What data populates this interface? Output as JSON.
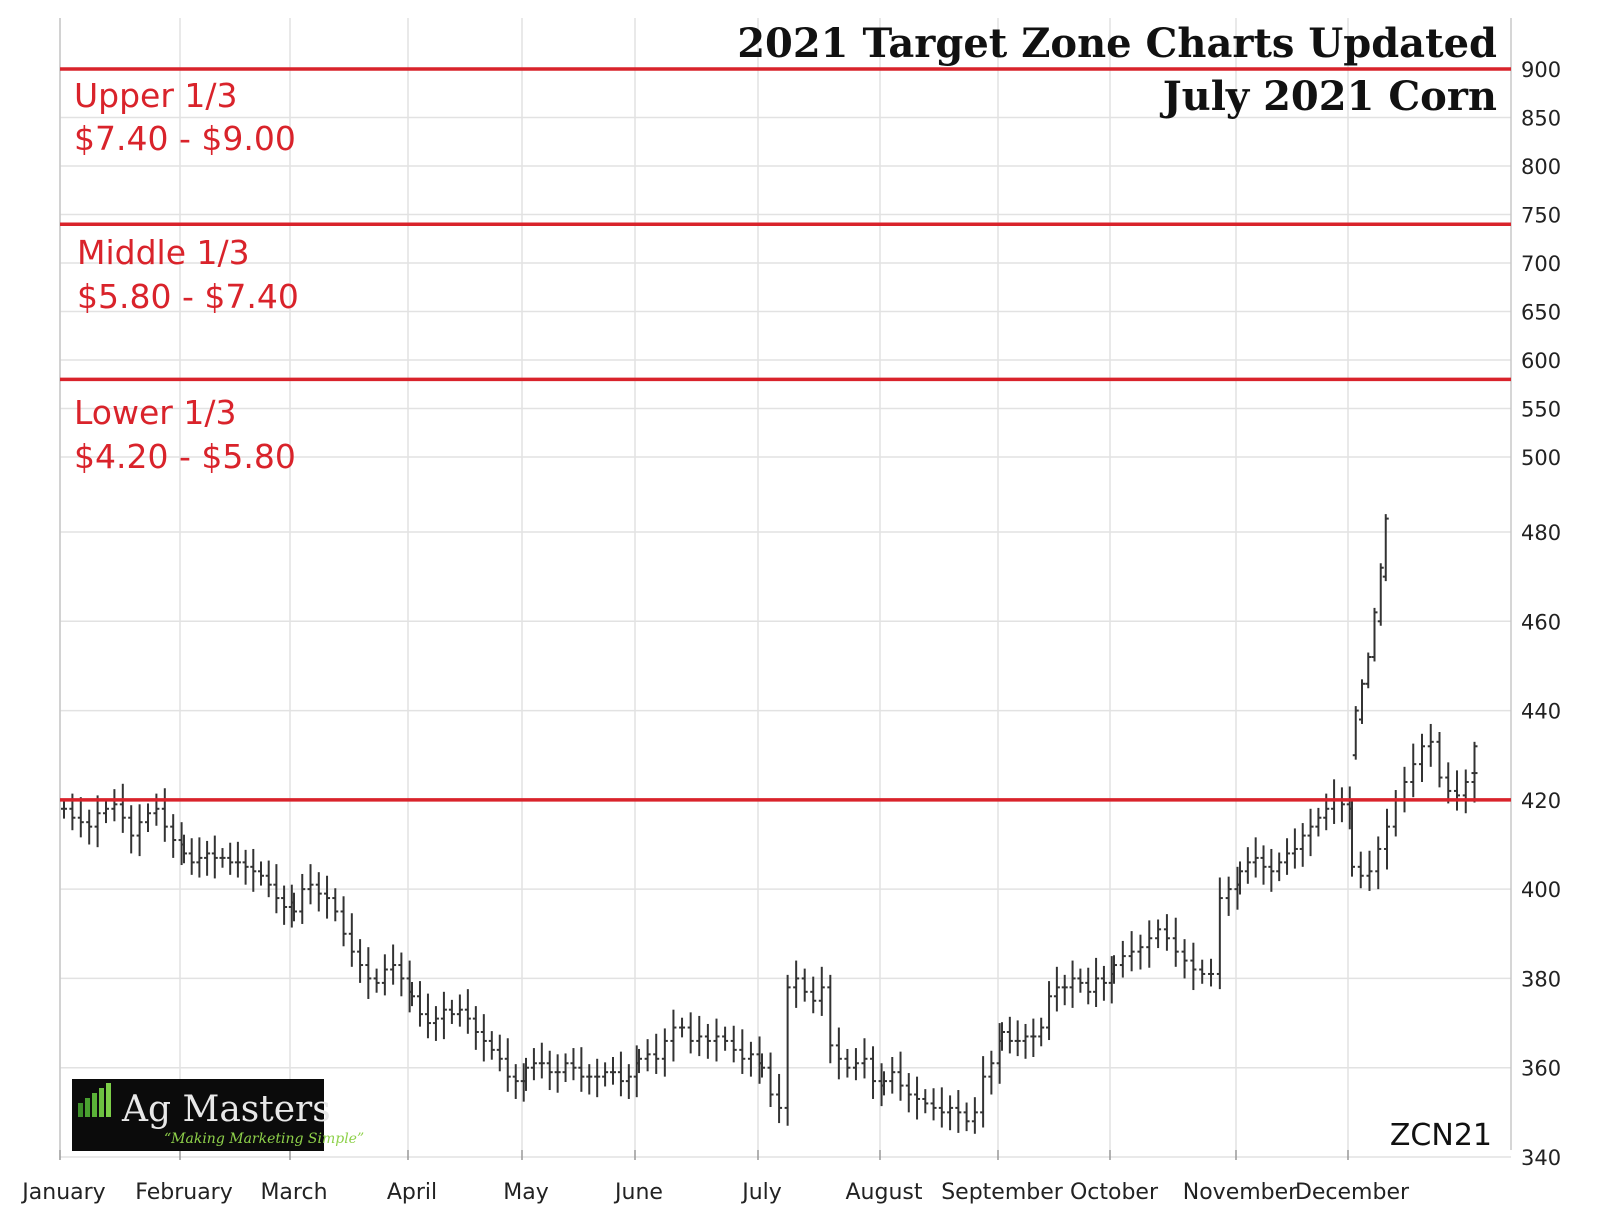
{
  "chart_data": {
    "type": "bar",
    "subtype": "ohlc",
    "title": "2021 Target Zone Charts Updated",
    "subtitle": "July 2021 Corn",
    "symbol": "ZCN21",
    "x_categories": [
      "January",
      "February",
      "March",
      "April",
      "May",
      "June",
      "July",
      "August",
      "September",
      "October",
      "November",
      "December"
    ],
    "y_ticks_upper": [
      900,
      850,
      800,
      750,
      700,
      650,
      600,
      550,
      500
    ],
    "y_ticks_lower": [
      480,
      460,
      440,
      420,
      400,
      380,
      360,
      340
    ],
    "ylim": [
      340,
      900
    ],
    "grid": true,
    "zones": [
      {
        "name": "Upper 1/3",
        "range_label": "$7.40 - $9.00",
        "low": 740,
        "high": 900
      },
      {
        "name": "Middle 1/3",
        "range_label": "$5.80 - $7.40",
        "low": 580,
        "high": 740
      },
      {
        "name": "Lower 1/3",
        "range_label": "$4.20 - $5.80",
        "low": 420,
        "high": 580
      }
    ],
    "zone_lines": [
      900,
      740,
      580,
      420
    ],
    "zone_line_color": "#d9232b",
    "price_color": "#333333",
    "monthly_closes": [
      {
        "month": "January",
        "value": 416
      },
      {
        "month": "February",
        "value": 407
      },
      {
        "month": "March",
        "value": 397
      },
      {
        "month": "April",
        "value": 375
      },
      {
        "month": "May",
        "value": 360
      },
      {
        "month": "June",
        "value": 362
      },
      {
        "month": "July",
        "value": 372
      },
      {
        "month": "August",
        "value": 352
      },
      {
        "month": "September",
        "value": 380
      },
      {
        "month": "October",
        "value": 402
      },
      {
        "month": "November",
        "value": 422
      },
      {
        "month": "December",
        "value": 430
      }
    ],
    "series": [
      {
        "x": [
          0.0,
          0.07,
          0.14,
          0.21,
          0.28,
          0.35,
          0.42,
          0.49,
          0.56,
          0.63,
          0.7,
          0.77,
          0.84,
          0.91,
          0.98,
          1.0,
          1.07,
          1.14,
          1.21,
          1.28,
          1.35,
          1.42,
          1.49,
          1.56,
          1.63,
          1.7,
          1.77,
          1.84,
          1.91,
          1.98,
          2.0,
          2.07,
          2.14,
          2.21,
          2.28,
          2.35,
          2.42,
          2.49,
          2.56,
          2.63,
          2.7,
          2.77,
          2.84,
          2.91,
          2.98,
          3.0,
          3.07,
          3.14,
          3.21,
          3.28,
          3.35,
          3.42,
          3.49,
          3.56,
          3.63,
          3.7,
          3.77,
          3.84,
          3.91,
          3.98,
          4.0,
          4.07,
          4.14,
          4.21,
          4.28,
          4.35,
          4.42,
          4.49,
          4.56,
          4.63,
          4.7,
          4.77,
          4.84,
          4.91,
          4.98,
          5.0,
          5.07,
          5.14,
          5.21,
          5.28,
          5.35,
          5.42,
          5.49,
          5.56,
          5.63,
          5.7,
          5.77,
          5.84,
          5.91,
          5.98,
          6.0,
          6.07,
          6.14,
          6.21,
          6.28,
          6.35,
          6.42,
          6.49,
          6.56,
          6.63,
          6.7,
          6.77,
          6.84,
          6.91,
          6.98,
          7.0,
          7.07,
          7.14,
          7.21,
          7.28,
          7.35,
          7.42,
          7.49,
          7.56,
          7.63,
          7.7,
          7.77,
          7.84,
          7.91,
          7.98,
          8.0,
          8.07,
          8.14,
          8.21,
          8.28,
          8.35,
          8.42,
          8.49,
          8.56,
          8.63,
          8.7,
          8.77,
          8.84,
          8.91,
          8.98,
          9.0,
          9.07,
          9.14,
          9.21,
          9.28,
          9.35,
          9.42,
          9.49,
          9.56,
          9.63,
          9.7,
          9.77,
          9.84,
          9.91,
          9.98,
          10.0,
          10.07,
          10.14,
          10.21,
          10.28,
          10.35,
          10.42,
          10.49,
          10.56,
          10.63,
          10.7,
          10.77,
          10.84,
          10.91,
          10.98,
          11.0,
          11.07,
          11.14,
          11.21,
          11.28,
          11.35,
          11.42,
          11.49,
          11.56,
          11.63,
          11.7,
          11.77,
          11.84,
          11.91,
          11.98
        ],
        "close": [
          418,
          416,
          415,
          414,
          417,
          418,
          419,
          416,
          412,
          415,
          417,
          418,
          414,
          411,
          410,
          408,
          406,
          407,
          408,
          407,
          407,
          406,
          406,
          405,
          404,
          403,
          401,
          398,
          396,
          397,
          395,
          400,
          401,
          399,
          398,
          395,
          390,
          386,
          383,
          380,
          379,
          382,
          383,
          380,
          377,
          376,
          372,
          370,
          371,
          373,
          372,
          373,
          371,
          368,
          366,
          364,
          362,
          358,
          357,
          357,
          360,
          361,
          361,
          359,
          359,
          361,
          360,
          358,
          358,
          358,
          359,
          359,
          357,
          358,
          361,
          362,
          363,
          362,
          366,
          369,
          369,
          366,
          367,
          366,
          367,
          366,
          364,
          362,
          363,
          361,
          360,
          354,
          351,
          378,
          380,
          377,
          375,
          378,
          365,
          362,
          360,
          361,
          362,
          357,
          356,
          357,
          359,
          356,
          354,
          353,
          352,
          351,
          350,
          351,
          350,
          348,
          350,
          358,
          361,
          366,
          368,
          366,
          366,
          367,
          367,
          369,
          376,
          378,
          378,
          380,
          379,
          377,
          380,
          379,
          381,
          383,
          385,
          386,
          387,
          389,
          391,
          389,
          386,
          384,
          382,
          381,
          381,
          398,
          400,
          401,
          404,
          406,
          407,
          405,
          404,
          406,
          408,
          409,
          412,
          414,
          416,
          418,
          420,
          419,
          418,
          405,
          403,
          404,
          409,
          414,
          420,
          424,
          428,
          432,
          433,
          425,
          422,
          421,
          424,
          426
        ]
      }
    ]
  },
  "logo": {
    "name": "Ag Masters",
    "tagline": "“Making Marketing Simple”"
  }
}
